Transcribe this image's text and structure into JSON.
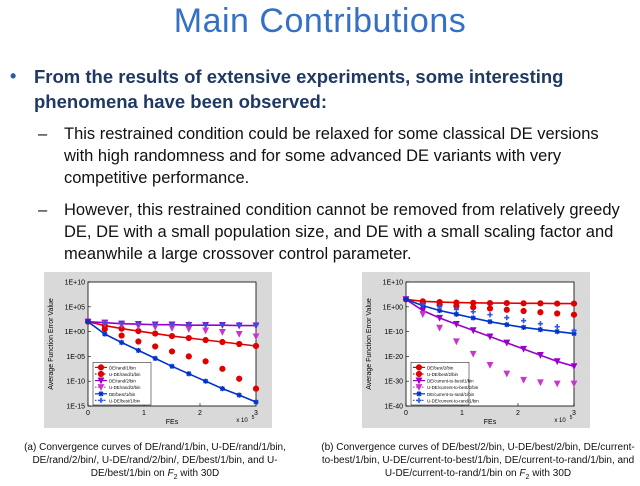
{
  "title": "Main Contributions",
  "bullet": {
    "marker": "•",
    "text": "From the results of extensive experiments, some interesting phenomena have been observed:"
  },
  "subpoints": [
    {
      "marker": "–",
      "text": "This restrained condition could be relaxed for some classical DE versions with high randomness and for some advanced DE variants with very competitive performance."
    },
    {
      "marker": "–",
      "text": "However, this restrained condition cannot be removed from relatively greedy DE, DE with a small population size, and DE with a small scaling factor and meanwhile a large crossover control parameter."
    }
  ],
  "captions": {
    "left": {
      "pre": "(a) Convergence curves  of DE/rand/1/bin, U-DE/rand/1/bin, DE/rand/2/bin/, U-DE/rand/2/bin/, DE/best/1/bin, and U-DE/best/1/bin on ",
      "func": "F",
      "sub": "2",
      "post": " with 30D"
    },
    "right": {
      "pre": "(b) Convergence curves of DE/best/2/bin, U-DE/best/2/bin, DE/current-to-best/1/bin, U-DE/current-to-best/1/bin, DE/current-to-rand/1/bin, and U-DE/current-to-rand/1/bin on ",
      "func": "F",
      "sub": "2",
      "post": " with 30D"
    }
  },
  "chart_data": [
    {
      "type": "line",
      "ylabel": "Average Function Error Value",
      "xlabel": "FEs",
      "x_scale_label": "x 10^5",
      "x_scale_base": "x 10",
      "x_scale_exp": "5",
      "xlim": [
        0,
        3
      ],
      "ylim_log10": [
        -15,
        10
      ],
      "xticks": [
        "0",
        "1",
        "2",
        "3"
      ],
      "yticks": [
        {
          "log": 10,
          "label": "1E+10"
        },
        {
          "log": 5,
          "label": "1E+05"
        },
        {
          "log": 0,
          "label": "1E+00"
        },
        {
          "log": -5,
          "label": "1E-05"
        },
        {
          "log": -10,
          "label": "1E-10"
        },
        {
          "log": -15,
          "label": "1E-15"
        }
      ],
      "series": [
        {
          "name": "DE/rand/1/bin",
          "color": "#e00000",
          "marker": "circle",
          "style": "line",
          "x": [
            0,
            0.3,
            0.6,
            0.9,
            1.2,
            1.5,
            1.8,
            2.1,
            2.4,
            2.7,
            3.0
          ],
          "log10_y": [
            2,
            1.2,
            0.6,
            0.1,
            -0.4,
            -0.9,
            -1.3,
            -1.7,
            -2.1,
            -2.5,
            -2.9
          ]
        },
        {
          "name": "U-DE/rand/1/bin",
          "color": "#e00000",
          "marker": "circle",
          "style": "markers",
          "x": [
            0.3,
            0.6,
            0.9,
            1.2,
            1.5,
            1.8,
            2.1,
            2.4,
            2.7,
            3.0
          ],
          "log10_y": [
            0.5,
            -0.8,
            -2.0,
            -3.0,
            -4.0,
            -5.0,
            -6.0,
            -7.5,
            -9.5,
            -11.5
          ]
        },
        {
          "name": "DE/rand/2/bin",
          "color": "#9900cc",
          "marker": "triangle-down",
          "style": "line",
          "x": [
            0,
            0.3,
            0.6,
            0.9,
            1.2,
            1.5,
            1.8,
            2.1,
            2.4,
            2.7,
            3.0
          ],
          "log10_y": [
            2,
            1.8,
            1.6,
            1.5,
            1.4,
            1.4,
            1.3,
            1.3,
            1.3,
            1.2,
            1.2
          ]
        },
        {
          "name": "U-DE/rand/2/bin",
          "color": "#cc33cc",
          "marker": "triangle-down",
          "style": "markers",
          "x": [
            0.3,
            0.6,
            0.9,
            1.2,
            1.5,
            1.8,
            2.1,
            2.4,
            2.7,
            3.0
          ],
          "log10_y": [
            1.6,
            1.3,
            1.1,
            0.9,
            0.7,
            0.5,
            0.2,
            -0.1,
            -0.5,
            -1.0
          ]
        },
        {
          "name": "DE/best/1/bin",
          "color": "#0033cc",
          "marker": "star",
          "style": "line",
          "x": [
            0,
            0.3,
            0.6,
            0.9,
            1.2,
            1.5,
            1.8,
            2.1,
            2.4,
            2.7,
            3.0
          ],
          "log10_y": [
            2,
            -0.5,
            -2.2,
            -3.8,
            -5.4,
            -7.0,
            -8.5,
            -10.0,
            -11.5,
            -12.8,
            -14.2
          ]
        },
        {
          "name": "U-DE/best/1/bin",
          "color": "#3355dd",
          "marker": "plus",
          "style": "markers",
          "x": [
            0.3,
            0.6,
            0.9,
            1.2,
            1.5,
            1.8,
            2.1,
            2.4,
            2.7,
            3.0
          ],
          "log10_y": [
            1.8,
            1.7,
            1.6,
            1.5,
            1.5,
            1.5,
            1.4,
            1.4,
            1.4,
            1.4
          ]
        }
      ]
    },
    {
      "type": "line",
      "ylabel": "Average Function Error Value",
      "xlabel": "FEs",
      "x_scale_label": "x 10^5",
      "x_scale_base": "x 10",
      "x_scale_exp": "5",
      "xlim": [
        0,
        3
      ],
      "ylim_log10": [
        -40,
        10
      ],
      "xticks": [
        "0",
        "1",
        "2",
        "3"
      ],
      "yticks": [
        {
          "log": 10,
          "label": "1E+10"
        },
        {
          "log": 0,
          "label": "1E+00"
        },
        {
          "log": -10,
          "label": "1E-10"
        },
        {
          "log": -20,
          "label": "1E-20"
        },
        {
          "log": -30,
          "label": "1E-30"
        },
        {
          "log": -40,
          "label": "1E-40"
        }
      ],
      "series": [
        {
          "name": "DE/best/2/bin",
          "color": "#e00000",
          "marker": "circle",
          "style": "line",
          "x": [
            0,
            0.3,
            0.6,
            0.9,
            1.2,
            1.5,
            1.8,
            2.1,
            2.4,
            2.7,
            3.0
          ],
          "log10_y": [
            3,
            2.2,
            1.9,
            1.7,
            1.6,
            1.5,
            1.5,
            1.4,
            1.4,
            1.3,
            1.3
          ]
        },
        {
          "name": "U-DE/best/2/bin",
          "color": "#e00000",
          "marker": "circle",
          "style": "markers",
          "x": [
            0.3,
            0.6,
            0.9,
            1.2,
            1.5,
            1.8,
            2.1,
            2.4,
            2.7,
            3.0
          ],
          "log10_y": [
            1.5,
            0.8,
            0.3,
            -0.2,
            -0.7,
            -1.2,
            -1.7,
            -2.2,
            -2.7,
            -3.2
          ]
        },
        {
          "name": "DE/current-to-best/1/bin",
          "color": "#9900cc",
          "marker": "triangle-down",
          "style": "line",
          "x": [
            0,
            0.3,
            0.6,
            0.9,
            1.2,
            1.5,
            1.8,
            2.1,
            2.4,
            2.7,
            3.0
          ],
          "log10_y": [
            3,
            -1.5,
            -4.5,
            -7.0,
            -9.5,
            -12.0,
            -14.5,
            -17.0,
            -19.5,
            -22.0,
            -24.0
          ]
        },
        {
          "name": "U-DE/current-to-best/1/bin",
          "color": "#cc33cc",
          "marker": "triangle-down",
          "style": "markers",
          "x": [
            0.3,
            0.6,
            0.9,
            1.2,
            1.5,
            1.8,
            2.1,
            2.4,
            2.7,
            3.0
          ],
          "log10_y": [
            -3,
            -8.5,
            -14.0,
            -19.0,
            -23.5,
            -27.0,
            -29.5,
            -30.5,
            -31.0,
            -31.0
          ]
        },
        {
          "name": "DE/current-to-rand/1/bin",
          "color": "#0033cc",
          "marker": "star",
          "style": "line",
          "x": [
            0,
            0.3,
            0.6,
            0.9,
            1.2,
            1.5,
            1.8,
            2.1,
            2.4,
            2.7,
            3.0
          ],
          "log10_y": [
            3,
            0.5,
            -1.5,
            -3.0,
            -4.5,
            -6.0,
            -7.2,
            -8.3,
            -9.2,
            -10.0,
            -10.8
          ]
        },
        {
          "name": "U-DE/current-to-rand/1/bin",
          "color": "#3355dd",
          "marker": "plus",
          "style": "markers",
          "x": [
            0.3,
            0.6,
            0.9,
            1.2,
            1.5,
            1.8,
            2.1,
            2.4,
            2.7,
            3.0
          ],
          "log10_y": [
            1.0,
            0.0,
            -1.0,
            -2.0,
            -3.2,
            -4.4,
            -5.6,
            -6.8,
            -8.0,
            -9.5
          ]
        }
      ]
    }
  ]
}
